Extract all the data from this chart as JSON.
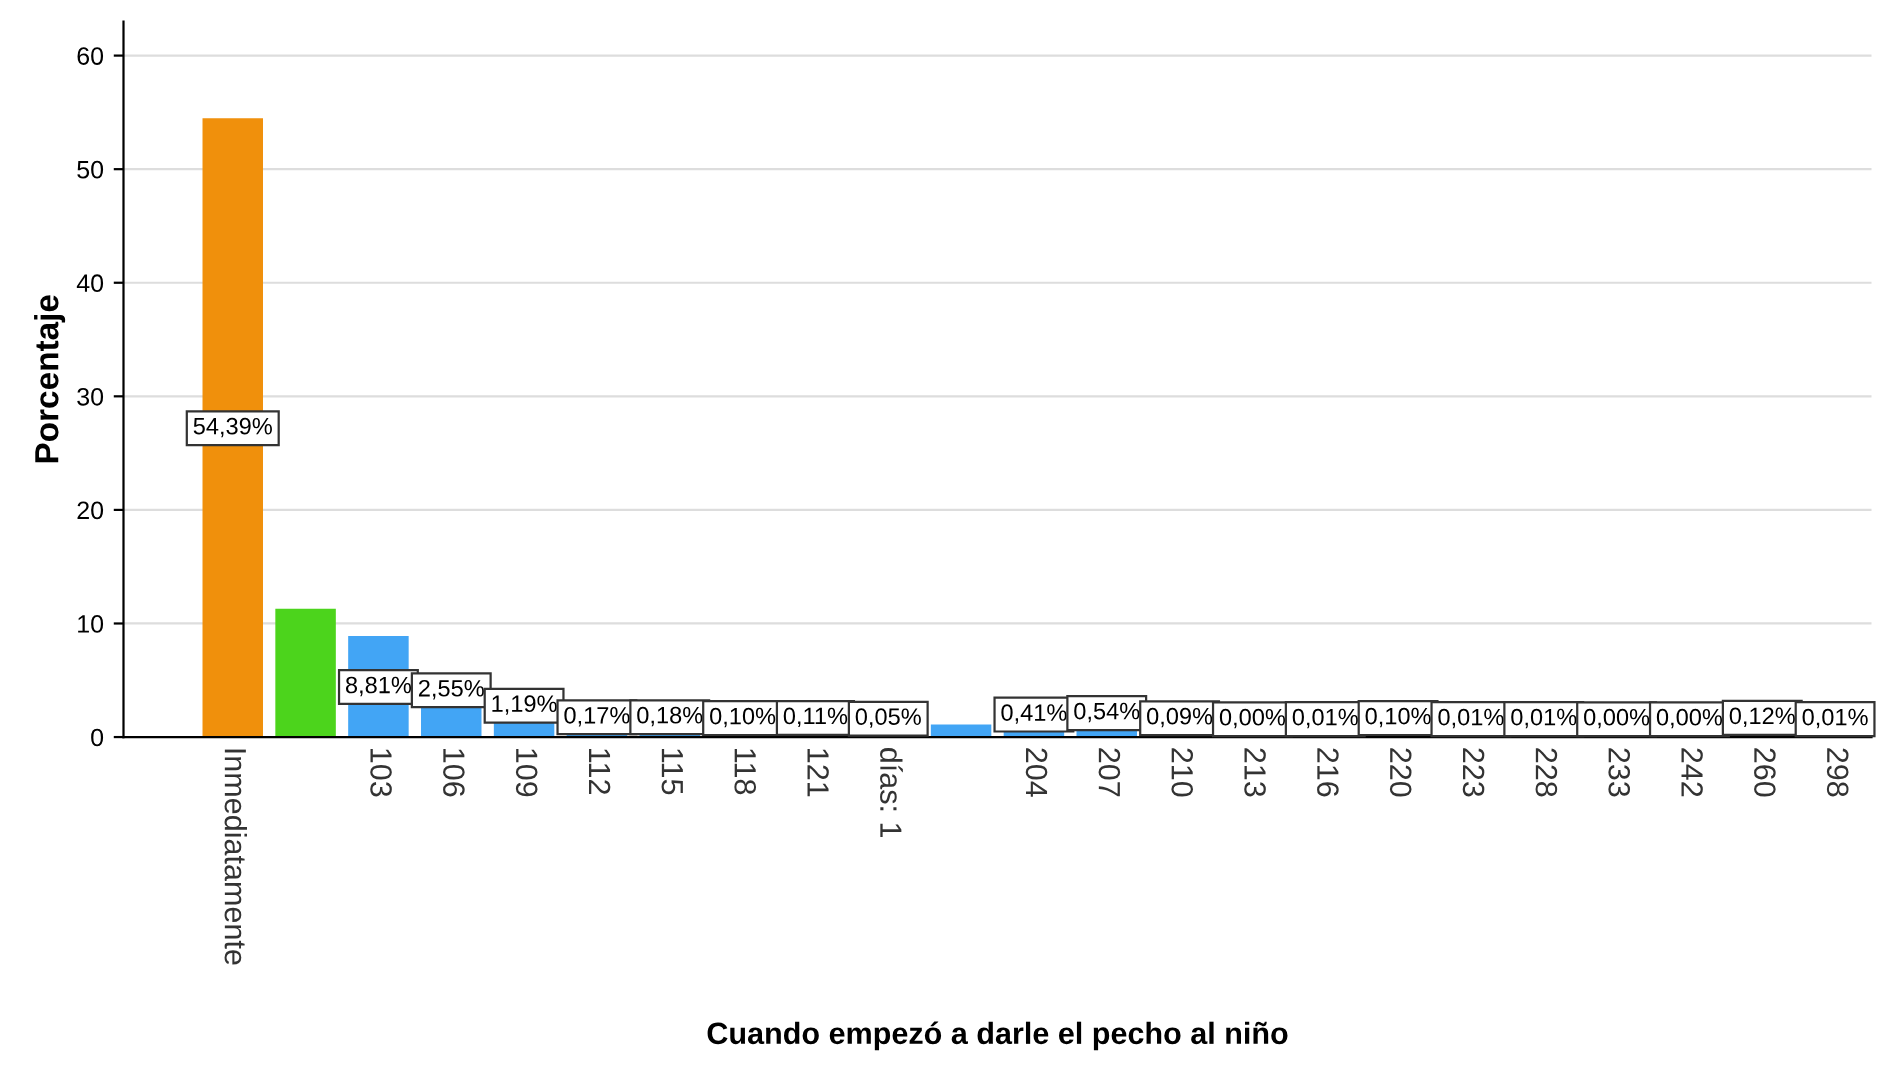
{
  "chart_data": {
    "type": "bar",
    "xlabel": "Cuando empezó a darle el pecho al niño",
    "ylabel": "Porcentaje",
    "categories": [
      "Inmediatamente",
      null,
      "103",
      "106",
      "109",
      "112",
      "115",
      "118",
      "121",
      "días: 1",
      null,
      "204",
      "207",
      "210",
      "213",
      "216",
      "220",
      "223",
      "228",
      "233",
      "242",
      "260",
      "298"
    ],
    "values": [
      54.39,
      11.2,
      8.81,
      2.55,
      1.19,
      0.17,
      0.18,
      0.1,
      0.11,
      0.05,
      1.0,
      0.41,
      0.54,
      0.09,
      0.0,
      0.01,
      0.1,
      0.01,
      0.01,
      0.0,
      0.0,
      0.12,
      0.01
    ],
    "value_labels": [
      "54,39%",
      null,
      "8,81%",
      "2,55%",
      "1,19%",
      "0,17%",
      "0,18%",
      "0,10%",
      "0,11%",
      "0,05%",
      null,
      "0,41%",
      "0,54%",
      "0,09%",
      "0,00%",
      "0,01%",
      "0,10%",
      "0,01%",
      "0,01%",
      "0,00%",
      "0,00%",
      "0,12%",
      "0,01%"
    ],
    "colors": [
      "#f0900c",
      "#4cd41c",
      "#42a5f5",
      "#42a5f5",
      "#42a5f5",
      "#42a5f5",
      "#42a5f5",
      "#42a5f5",
      "#42a5f5",
      "#42a5f5",
      "#42a5f5",
      "#42a5f5",
      "#42a5f5",
      "#42a5f5",
      "#42a5f5",
      "#42a5f5",
      "#42a5f5",
      "#42a5f5",
      "#42a5f5",
      "#42a5f5",
      "#42a5f5",
      "#42a5f5",
      "#42a5f5"
    ],
    "ylim": [
      0,
      63
    ],
    "yticks": [
      0,
      10,
      20,
      30,
      40,
      50,
      60
    ],
    "grid": "y"
  }
}
